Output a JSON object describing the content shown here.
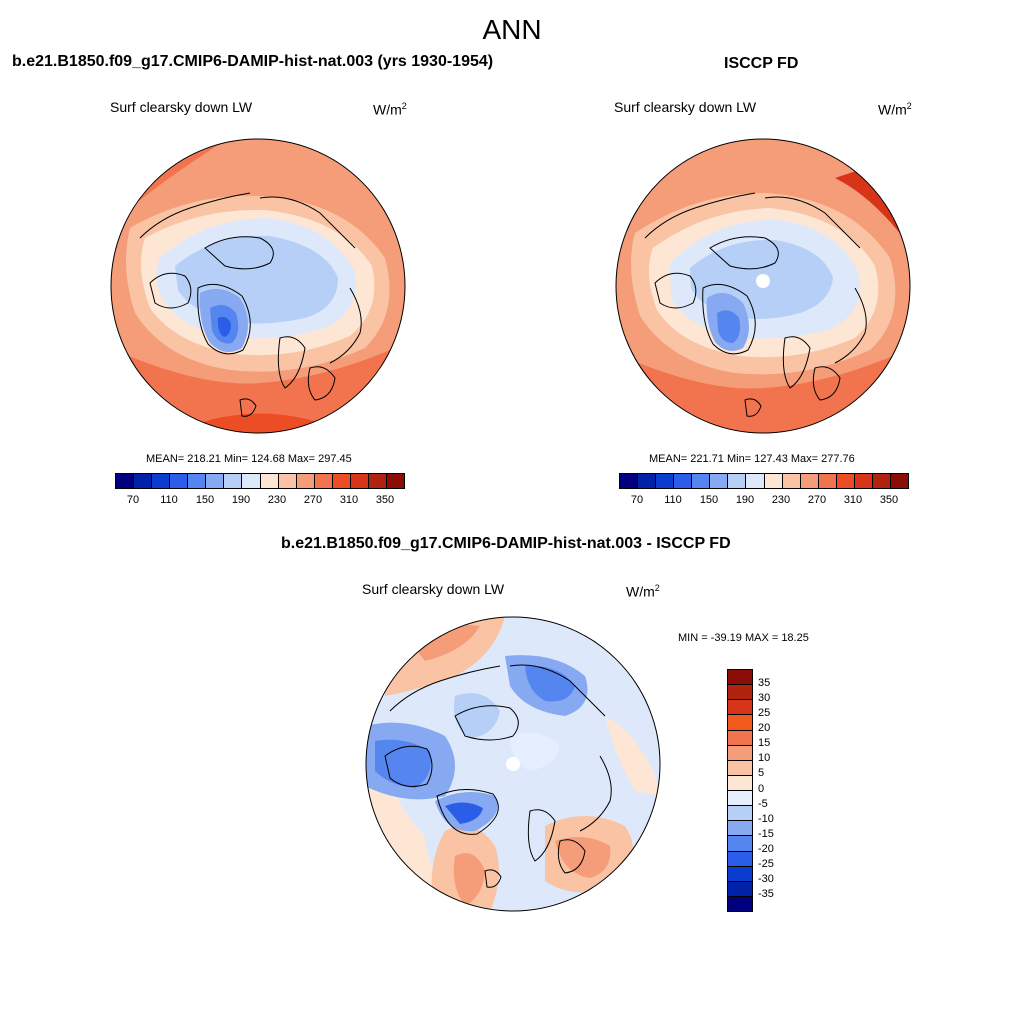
{
  "header": {
    "title": "ANN"
  },
  "panels": {
    "model": {
      "title": "b.e21.B1850.f09_g17.CMIP6-DAMIP-hist-nat.003 (yrs 1930-1954)",
      "var_label": "Surf clearsky down LW",
      "units": "W/m",
      "units_sup": "2",
      "stats": "MEAN= 218.21  Min= 124.68  Max= 297.45"
    },
    "obs": {
      "title": "ISCCP FD",
      "var_label": "Surf clearsky down LW",
      "units": "W/m",
      "units_sup": "2",
      "stats": "MEAN= 221.71  Min= 127.43  Max= 277.76"
    },
    "diff": {
      "title": "b.e21.B1850.f09_g17.CMIP6-DAMIP-hist-nat.003 - ISCCP FD",
      "var_label": "Surf clearsky down LW",
      "units": "W/m",
      "units_sup": "2",
      "stats": "MIN = -39.19 MAX =  18.25"
    }
  },
  "colorbars": {
    "abs": {
      "labels": [
        "70",
        "110",
        "150",
        "190",
        "230",
        "270",
        "310",
        "350"
      ],
      "colors": [
        "#00007f",
        "#0022a8",
        "#0a3ccf",
        "#2a5ee8",
        "#5585ee",
        "#86a9f2",
        "#b6cff7",
        "#dde9fb",
        "#fde6d4",
        "#f9c3a4",
        "#f59c78",
        "#f2744f",
        "#ec4d25",
        "#d8341a",
        "#b1220f",
        "#8a0e06"
      ]
    },
    "diff": {
      "labels": [
        "35",
        "30",
        "25",
        "20",
        "15",
        "10",
        "5",
        "0",
        "-5",
        "-10",
        "-15",
        "-20",
        "-25",
        "-30",
        "-35"
      ],
      "colors": [
        "#8a0e06",
        "#b1220f",
        "#d8341a",
        "#f25a1e",
        "#f2744f",
        "#f59c78",
        "#f9c3a4",
        "#fde6d4",
        "#e6efff",
        "#b6cff7",
        "#86a9f2",
        "#5585ee",
        "#2a5ee8",
        "#0a3ccf",
        "#0022a8",
        "#00007f"
      ]
    }
  }
}
